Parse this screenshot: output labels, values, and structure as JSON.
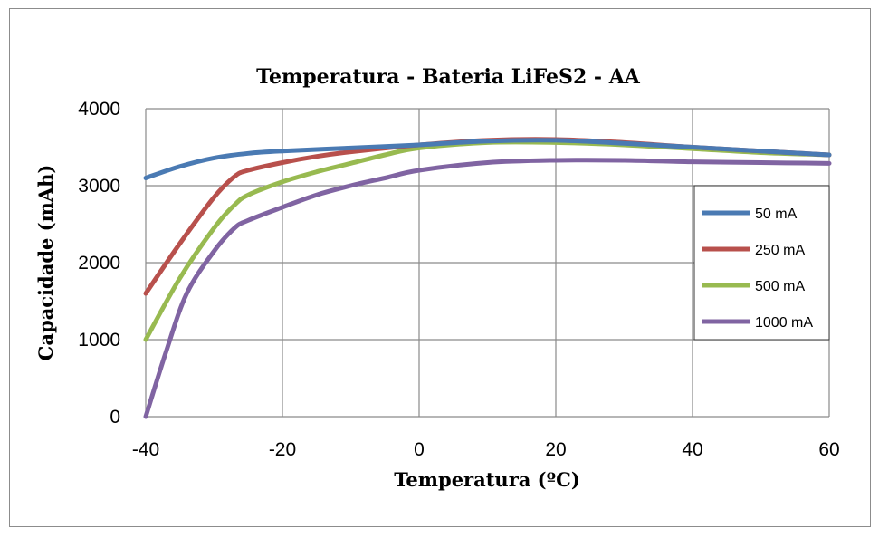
{
  "chart_data": {
    "type": "line",
    "title": "Temperatura - Bateria LiFeS2 - AA",
    "xlabel": "Temperatura (ºC)",
    "ylabel": "Capacidade (mAh)",
    "xlim": [
      -40,
      60
    ],
    "ylim": [
      0,
      4000
    ],
    "x_ticks": [
      "-40",
      "-20",
      "0",
      "20",
      "40",
      "60"
    ],
    "y_ticks": [
      "0",
      "1000",
      "2000",
      "3000",
      "4000"
    ],
    "grid": true,
    "legend_position": "right",
    "series": [
      {
        "name": "50 mA",
        "color": "#4a7ab3",
        "points": [
          [
            -40,
            3100
          ],
          [
            -35,
            3250
          ],
          [
            -30,
            3360
          ],
          [
            -25,
            3420
          ],
          [
            -20,
            3450
          ],
          [
            -10,
            3490
          ],
          [
            0,
            3530
          ],
          [
            10,
            3580
          ],
          [
            20,
            3590
          ],
          [
            30,
            3550
          ],
          [
            40,
            3500
          ],
          [
            50,
            3450
          ],
          [
            60,
            3400
          ]
        ]
      },
      {
        "name": "250 mA",
        "color": "#b8504c",
        "points": [
          [
            -40,
            1600
          ],
          [
            -35,
            2250
          ],
          [
            -30,
            2850
          ],
          [
            -27,
            3120
          ],
          [
            -25,
            3200
          ],
          [
            -20,
            3300
          ],
          [
            -15,
            3380
          ],
          [
            -10,
            3440
          ],
          [
            0,
            3530
          ],
          [
            10,
            3590
          ],
          [
            20,
            3600
          ],
          [
            30,
            3560
          ],
          [
            40,
            3500
          ],
          [
            50,
            3450
          ],
          [
            60,
            3400
          ]
        ]
      },
      {
        "name": "500 mA",
        "color": "#98ba50",
        "points": [
          [
            -40,
            1000
          ],
          [
            -35,
            1800
          ],
          [
            -30,
            2450
          ],
          [
            -27,
            2750
          ],
          [
            -25,
            2880
          ],
          [
            -20,
            3050
          ],
          [
            -15,
            3180
          ],
          [
            -10,
            3290
          ],
          [
            -5,
            3400
          ],
          [
            0,
            3490
          ],
          [
            10,
            3560
          ],
          [
            20,
            3560
          ],
          [
            30,
            3530
          ],
          [
            40,
            3480
          ],
          [
            50,
            3430
          ],
          [
            60,
            3400
          ]
        ]
      },
      {
        "name": "1000 mA",
        "color": "#8064a2",
        "points": [
          [
            -40,
            0
          ],
          [
            -37,
            850
          ],
          [
            -34,
            1600
          ],
          [
            -30,
            2150
          ],
          [
            -27,
            2450
          ],
          [
            -25,
            2550
          ],
          [
            -20,
            2720
          ],
          [
            -15,
            2880
          ],
          [
            -10,
            3000
          ],
          [
            -5,
            3100
          ],
          [
            0,
            3200
          ],
          [
            10,
            3300
          ],
          [
            20,
            3330
          ],
          [
            30,
            3330
          ],
          [
            40,
            3310
          ],
          [
            50,
            3300
          ],
          [
            60,
            3290
          ]
        ]
      }
    ]
  }
}
